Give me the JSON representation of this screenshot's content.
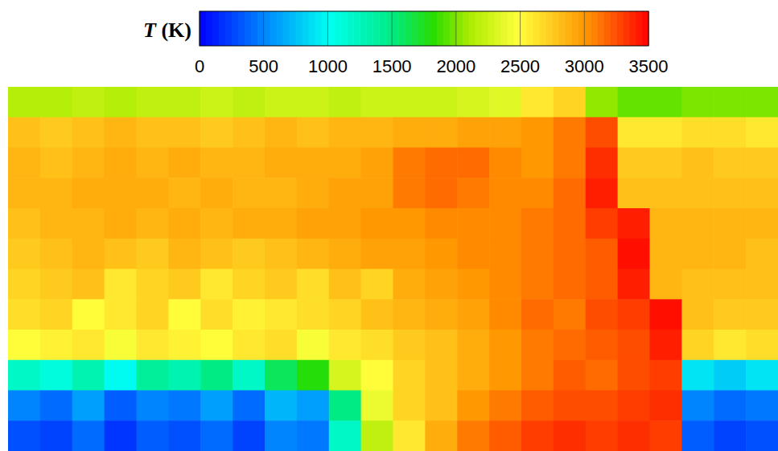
{
  "chart_data": {
    "type": "heatmap",
    "tick_labels": false,
    "colorbar": {
      "label": "T (K)",
      "range": [
        0,
        3500
      ],
      "ticks": [
        0,
        500,
        1000,
        1500,
        2000,
        2500,
        3000,
        3500
      ]
    },
    "cells": [
      [
        2150,
        2150,
        2200,
        2150,
        2200,
        2200,
        2250,
        2200,
        2250,
        2250,
        2200,
        2250,
        2250,
        2250,
        2300,
        2350,
        2600,
        2700,
        2050,
        1950,
        1950,
        2000,
        2000,
        2000
      ],
      [
        2800,
        2750,
        2800,
        2850,
        2800,
        2800,
        2750,
        2800,
        2850,
        2800,
        2850,
        2850,
        2900,
        2900,
        2950,
        2950,
        3000,
        3100,
        3250,
        2600,
        2600,
        2650,
        2650,
        2600
      ],
      [
        2850,
        2800,
        2850,
        2900,
        2850,
        2900,
        2850,
        2850,
        2900,
        2900,
        2900,
        2950,
        3100,
        3150,
        3150,
        3050,
        3000,
        3100,
        3350,
        2750,
        2750,
        2800,
        2750,
        2750
      ],
      [
        2850,
        2850,
        2900,
        2900,
        2900,
        2850,
        2900,
        2850,
        2850,
        2900,
        2950,
        2950,
        3100,
        3150,
        3100,
        3050,
        3050,
        3150,
        3400,
        2800,
        2800,
        2800,
        2800,
        2800
      ],
      [
        2800,
        2850,
        2850,
        2900,
        2850,
        2900,
        2850,
        2900,
        2900,
        2950,
        2950,
        3000,
        3000,
        3050,
        3050,
        3050,
        3100,
        3150,
        3300,
        3400,
        2850,
        2850,
        2850,
        2850
      ],
      [
        2750,
        2800,
        2850,
        2800,
        2750,
        2850,
        2800,
        2750,
        2800,
        2850,
        2900,
        2950,
        2950,
        3000,
        3050,
        3050,
        3100,
        3150,
        3200,
        3450,
        2850,
        2850,
        2850,
        2800
      ],
      [
        2700,
        2750,
        2800,
        2600,
        2700,
        2750,
        2600,
        2700,
        2750,
        2650,
        2800,
        2700,
        2900,
        2950,
        3000,
        3050,
        3100,
        3150,
        3200,
        3400,
        2850,
        2800,
        2800,
        2800
      ],
      [
        2650,
        2700,
        2500,
        2600,
        2700,
        2500,
        2650,
        2550,
        2600,
        2650,
        2700,
        2800,
        2850,
        2900,
        2950,
        3050,
        3150,
        3100,
        3250,
        3300,
        3450,
        2800,
        2750,
        2750
      ],
      [
        2500,
        2550,
        2600,
        2450,
        2600,
        2550,
        2500,
        2600,
        2650,
        2450,
        2600,
        2650,
        2750,
        2800,
        2900,
        3000,
        3100,
        3150,
        3200,
        3250,
        3400,
        2700,
        2600,
        2650
      ],
      [
        1200,
        1100,
        1300,
        1000,
        1400,
        1300,
        1500,
        1200,
        1600,
        1800,
        2300,
        2500,
        2700,
        2800,
        2900,
        3000,
        3100,
        3200,
        3150,
        3250,
        3300,
        900,
        800,
        900
      ],
      [
        500,
        400,
        600,
        350,
        500,
        450,
        600,
        400,
        700,
        600,
        1500,
        2400,
        2700,
        2800,
        3000,
        3100,
        3200,
        3250,
        3250,
        3300,
        3350,
        500,
        400,
        450
      ],
      [
        300,
        250,
        400,
        200,
        350,
        300,
        400,
        250,
        500,
        450,
        1200,
        2200,
        2600,
        2900,
        3100,
        3200,
        3300,
        3350,
        3300,
        3350,
        3300,
        350,
        250,
        300
      ]
    ]
  }
}
